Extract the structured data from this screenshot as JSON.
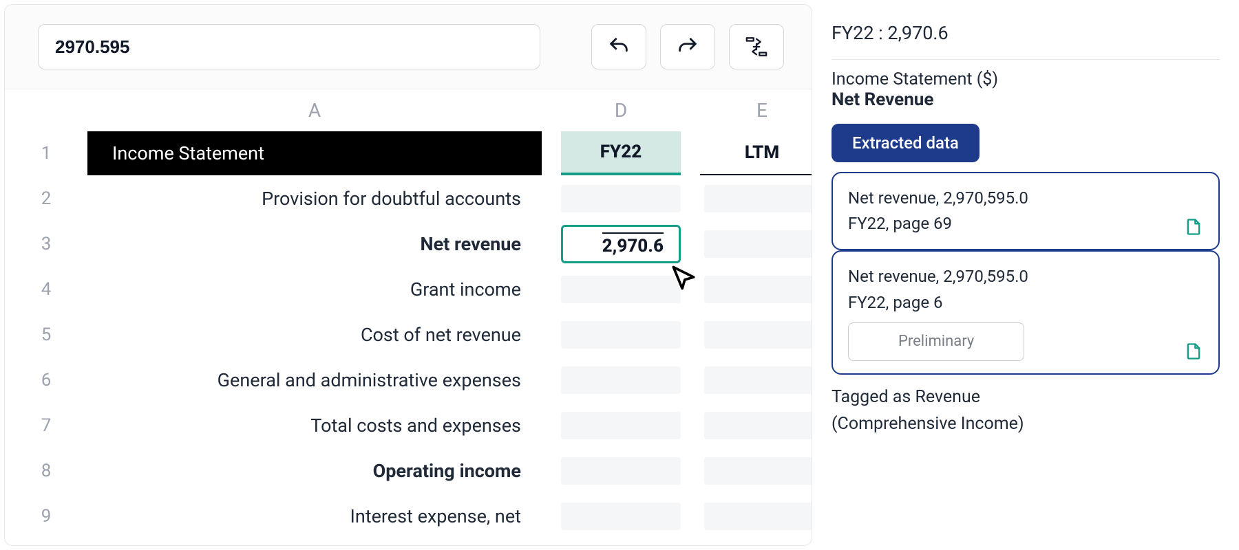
{
  "toolbar": {
    "formula_value": "2970.595"
  },
  "sheet": {
    "col_headers": {
      "a": "A",
      "d": "D",
      "e": "E"
    },
    "header_row": {
      "num": "1",
      "a": "Income Statement",
      "d": "FY22",
      "e": "LTM"
    },
    "selected_cell": {
      "value": "2,970.6"
    },
    "rows": [
      {
        "num": "2",
        "a": "Provision for doubtful accounts",
        "bold": false
      },
      {
        "num": "3",
        "a": "Net revenue",
        "bold": true,
        "selected": true
      },
      {
        "num": "4",
        "a": "Grant income",
        "bold": false
      },
      {
        "num": "5",
        "a": "Cost of net revenue",
        "bold": false
      },
      {
        "num": "6",
        "a": "General and administrative expenses",
        "bold": false
      },
      {
        "num": "7",
        "a": "Total costs and expenses",
        "bold": false
      },
      {
        "num": "8",
        "a": "Operating income",
        "bold": true
      },
      {
        "num": "9",
        "a": "Interest expense, net",
        "bold": false
      }
    ]
  },
  "panel": {
    "title": "FY22 : 2,970.6",
    "section_label": "Income Statement ($)",
    "section_name": "Net Revenue",
    "badge": "Extracted data",
    "cards": [
      {
        "line1": "Net revenue, 2,970,595.0",
        "line2": "FY22, page 69",
        "chip": null
      },
      {
        "line1": "Net revenue, 2,970,595.0",
        "line2": "FY22, page 6",
        "chip": "Preliminary"
      }
    ],
    "note1": "Tagged as Revenue",
    "note2": "(Comprehensive Income)"
  },
  "colors": {
    "accent_teal": "#159e87",
    "navy": "#1e3a8a",
    "header_bg": "#000000",
    "teal_tint": "#d5e9e4"
  }
}
